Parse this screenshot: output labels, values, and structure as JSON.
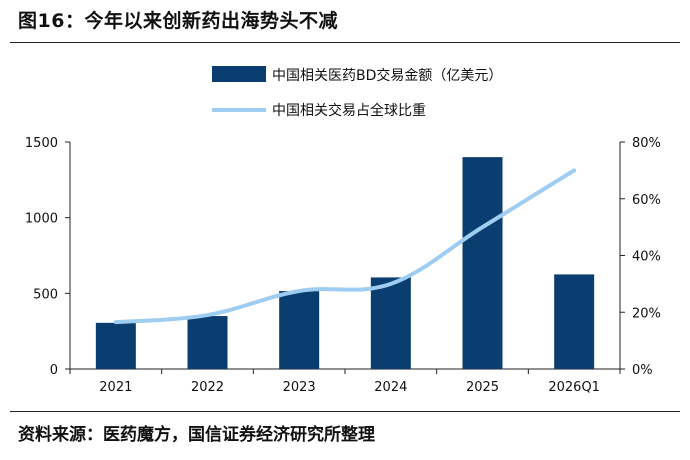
{
  "title": "图16：今年以来创新药出海势头不减",
  "source": "资料来源：医药魔方，国信证券经济研究所整理",
  "colors": {
    "bar": "#0a3e70",
    "line": "#9fccf1"
  },
  "chart_data": {
    "type": "bar",
    "categories": [
      "2021",
      "2022",
      "2023",
      "2024",
      "2025",
      "2026Q1"
    ],
    "series": [
      {
        "name": "中国相关医药BD交易金额（亿美元）",
        "type": "bar",
        "axis": "left",
        "values": [
          305,
          350,
          515,
          605,
          1400,
          625
        ]
      },
      {
        "name": "中国相关交易占全球比重",
        "type": "line",
        "axis": "right",
        "values": [
          16.5,
          19,
          27.5,
          30,
          50,
          70
        ]
      }
    ],
    "y_left": {
      "lim": [
        0,
        1500
      ],
      "ticks": [
        "0",
        "500",
        "1000",
        "1500"
      ]
    },
    "y_right": {
      "lim": [
        0,
        80
      ],
      "ticks": [
        "0%",
        "20%",
        "40%",
        "60%",
        "80%"
      ]
    },
    "legend": "top-right",
    "grid": false
  }
}
